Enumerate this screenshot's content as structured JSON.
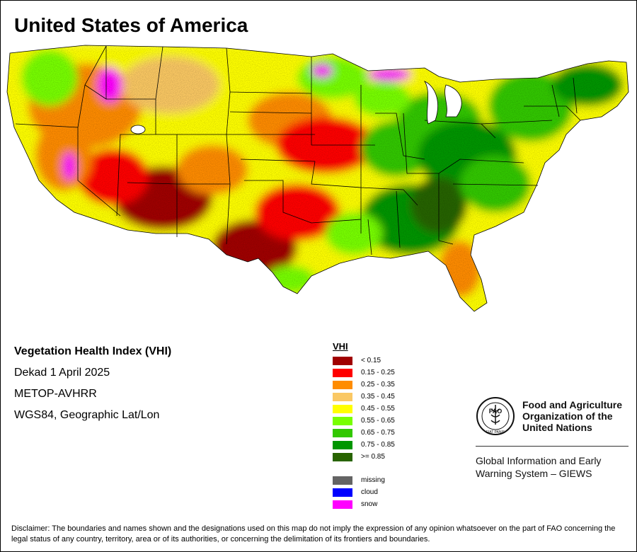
{
  "map": {
    "title": "United States of America",
    "meta": {
      "index_name": "Vegetation Health Index (VHI)",
      "period": "Dekad 1 April 2025",
      "sensor": "METOP-AVHRR",
      "projection": "WGS84, Geographic Lat/Lon"
    },
    "legend": {
      "title": "VHI",
      "classes": [
        {
          "label": "< 0.15",
          "color": "#a00000"
        },
        {
          "label": "0.15 - 0.25",
          "color": "#ff0000"
        },
        {
          "label": "0.25 - 0.35",
          "color": "#ff8c00"
        },
        {
          "label": "0.35 - 0.45",
          "color": "#fac864"
        },
        {
          "label": "0.45 - 0.55",
          "color": "#ffff00"
        },
        {
          "label": "0.55 - 0.65",
          "color": "#78ff00"
        },
        {
          "label": "0.65 - 0.75",
          "color": "#32c800"
        },
        {
          "label": "0.75 - 0.85",
          "color": "#009600"
        },
        {
          "label": ">= 0.85",
          "color": "#286400"
        }
      ],
      "extra": [
        {
          "label": "missing",
          "color": "#646464"
        },
        {
          "label": "cloud",
          "color": "#0000ff"
        },
        {
          "label": "snow",
          "color": "#ff00ff"
        }
      ]
    },
    "organization": {
      "name_line1": "Food and Agriculture",
      "name_line2": "Organization of the",
      "name_line3": "United Nations",
      "logo_text": "FAO",
      "logo_motto": "FIAT PANIS",
      "system_line1": "Global Information and Early",
      "system_line2": "Warning System – GIEWS"
    },
    "disclaimer": "Disclaimer: The boundaries and names shown and the designations used on this map do not imply the expression of any opinion whatsoever on the part of FAO concerning the legal status of any country, territory, area or of its authorities, or concerning the delimitation of its frontiers and boundaries."
  }
}
